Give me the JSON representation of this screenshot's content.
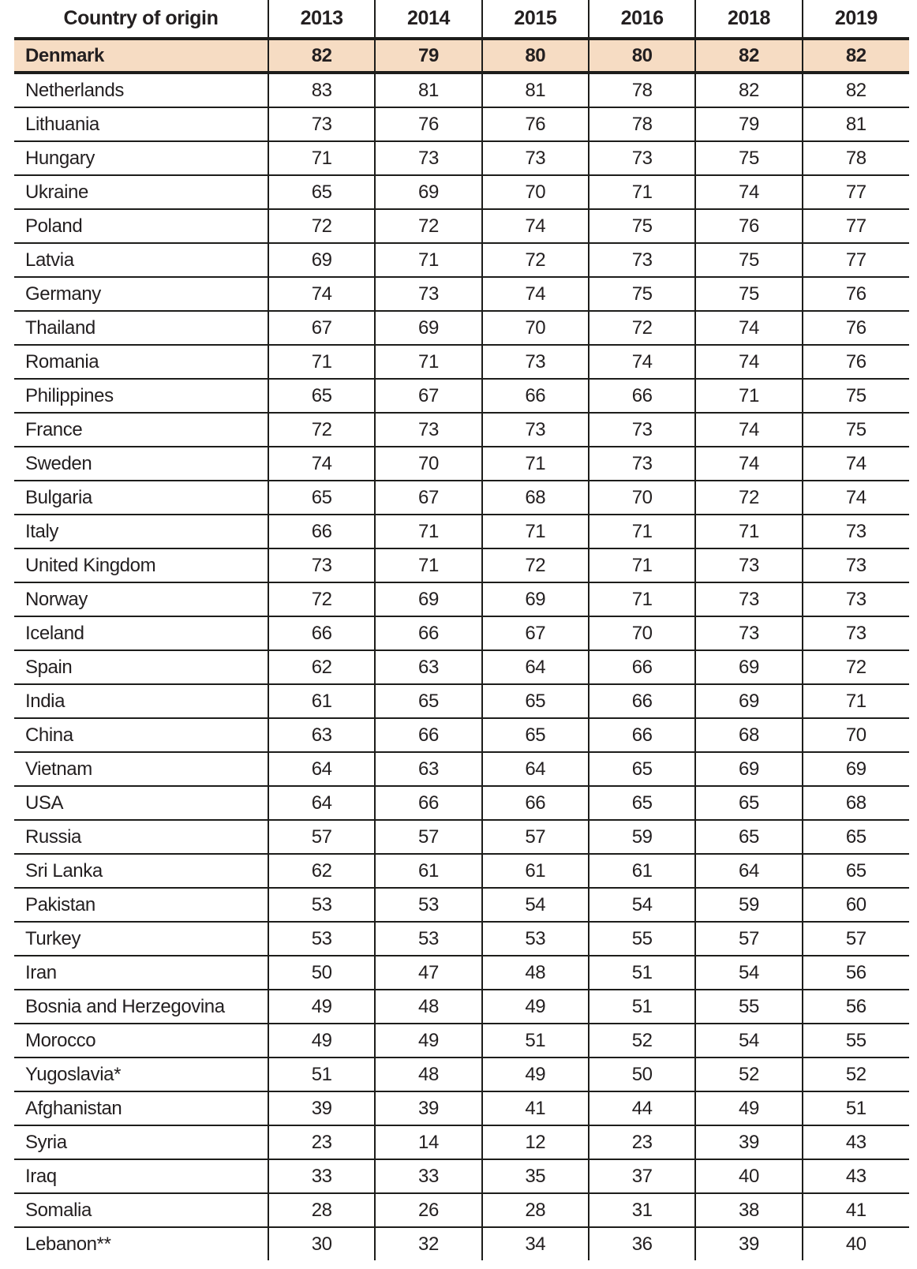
{
  "colors": {
    "highlight_row_bg": "#f6dcc3",
    "border": "#1d1d1b",
    "text": "#231f20",
    "page_bg": "#ffffff"
  },
  "chart_data": {
    "type": "table",
    "title": "",
    "columns": [
      "Country of origin",
      "2013",
      "2014",
      "2015",
      "2016",
      "2018",
      "2019"
    ],
    "highlighted_row": "Denmark",
    "rows": [
      {
        "country": "Denmark",
        "values": [
          82,
          79,
          80,
          80,
          82,
          82
        ],
        "highlight": true
      },
      {
        "country": "Netherlands",
        "values": [
          83,
          81,
          81,
          78,
          82,
          82
        ],
        "highlight": false
      },
      {
        "country": "Lithuania",
        "values": [
          73,
          76,
          76,
          78,
          79,
          81
        ],
        "highlight": false
      },
      {
        "country": "Hungary",
        "values": [
          71,
          73,
          73,
          73,
          75,
          78
        ],
        "highlight": false
      },
      {
        "country": "Ukraine",
        "values": [
          65,
          69,
          70,
          71,
          74,
          77
        ],
        "highlight": false
      },
      {
        "country": "Poland",
        "values": [
          72,
          72,
          74,
          75,
          76,
          77
        ],
        "highlight": false
      },
      {
        "country": "Latvia",
        "values": [
          69,
          71,
          72,
          73,
          75,
          77
        ],
        "highlight": false
      },
      {
        "country": "Germany",
        "values": [
          74,
          73,
          74,
          75,
          75,
          76
        ],
        "highlight": false
      },
      {
        "country": "Thailand",
        "values": [
          67,
          69,
          70,
          72,
          74,
          76
        ],
        "highlight": false
      },
      {
        "country": "Romania",
        "values": [
          71,
          71,
          73,
          74,
          74,
          76
        ],
        "highlight": false
      },
      {
        "country": "Philippines",
        "values": [
          65,
          67,
          66,
          66,
          71,
          75
        ],
        "highlight": false
      },
      {
        "country": "France",
        "values": [
          72,
          73,
          73,
          73,
          74,
          75
        ],
        "highlight": false
      },
      {
        "country": "Sweden",
        "values": [
          74,
          70,
          71,
          73,
          74,
          74
        ],
        "highlight": false
      },
      {
        "country": "Bulgaria",
        "values": [
          65,
          67,
          68,
          70,
          72,
          74
        ],
        "highlight": false
      },
      {
        "country": "Italy",
        "values": [
          66,
          71,
          71,
          71,
          71,
          73
        ],
        "highlight": false
      },
      {
        "country": "United Kingdom",
        "values": [
          73,
          71,
          72,
          71,
          73,
          73
        ],
        "highlight": false
      },
      {
        "country": "Norway",
        "values": [
          72,
          69,
          69,
          71,
          73,
          73
        ],
        "highlight": false
      },
      {
        "country": "Iceland",
        "values": [
          66,
          66,
          67,
          70,
          73,
          73
        ],
        "highlight": false
      },
      {
        "country": "Spain",
        "values": [
          62,
          63,
          64,
          66,
          69,
          72
        ],
        "highlight": false
      },
      {
        "country": "India",
        "values": [
          61,
          65,
          65,
          66,
          69,
          71
        ],
        "highlight": false
      },
      {
        "country": "China",
        "values": [
          63,
          66,
          65,
          66,
          68,
          70
        ],
        "highlight": false
      },
      {
        "country": "Vietnam",
        "values": [
          64,
          63,
          64,
          65,
          69,
          69
        ],
        "highlight": false
      },
      {
        "country": "USA",
        "values": [
          64,
          66,
          66,
          65,
          65,
          68
        ],
        "highlight": false
      },
      {
        "country": "Russia",
        "values": [
          57,
          57,
          57,
          59,
          65,
          65
        ],
        "highlight": false
      },
      {
        "country": "Sri Lanka",
        "values": [
          62,
          61,
          61,
          61,
          64,
          65
        ],
        "highlight": false
      },
      {
        "country": "Pakistan",
        "values": [
          53,
          53,
          54,
          54,
          59,
          60
        ],
        "highlight": false
      },
      {
        "country": "Turkey",
        "values": [
          53,
          53,
          53,
          55,
          57,
          57
        ],
        "highlight": false
      },
      {
        "country": "Iran",
        "values": [
          50,
          47,
          48,
          51,
          54,
          56
        ],
        "highlight": false
      },
      {
        "country": "Bosnia and Herzegovina",
        "values": [
          49,
          48,
          49,
          51,
          55,
          56
        ],
        "highlight": false
      },
      {
        "country": "Morocco",
        "values": [
          49,
          49,
          51,
          52,
          54,
          55
        ],
        "highlight": false
      },
      {
        "country": "Yugoslavia*",
        "values": [
          51,
          48,
          49,
          50,
          52,
          52
        ],
        "highlight": false
      },
      {
        "country": "Afghanistan",
        "values": [
          39,
          39,
          41,
          44,
          49,
          51
        ],
        "highlight": false
      },
      {
        "country": "Syria",
        "values": [
          23,
          14,
          12,
          23,
          39,
          43
        ],
        "highlight": false
      },
      {
        "country": "Iraq",
        "values": [
          33,
          33,
          35,
          37,
          40,
          43
        ],
        "highlight": false
      },
      {
        "country": "Somalia",
        "values": [
          28,
          26,
          28,
          31,
          38,
          41
        ],
        "highlight": false
      },
      {
        "country": "Lebanon**",
        "values": [
          30,
          32,
          34,
          36,
          39,
          40
        ],
        "highlight": false
      }
    ]
  }
}
